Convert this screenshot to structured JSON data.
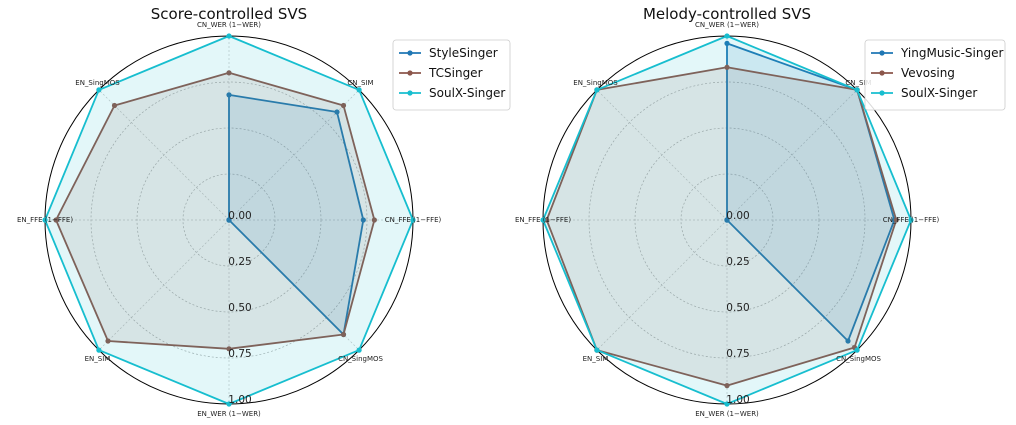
{
  "chart_data": [
    {
      "type": "radar",
      "title": "Score-controlled SVS",
      "axes": [
        "CN_WER (1−WER)",
        "CN_SIM",
        "CN_FFE (1−FFE)",
        "CN_SingMOS",
        "EN_WER (1−WER)",
        "EN_SIM",
        "EN_FFE (1−FFE)",
        "EN_SingMOS"
      ],
      "rticks": [
        "0.00",
        "0.25",
        "0.50",
        "0.75",
        "1.00"
      ],
      "rlim": [
        0,
        1
      ],
      "grid": true,
      "legend_position": "top-right",
      "series": [
        {
          "name": "StyleSinger",
          "color": "#1f77b4",
          "values": [
            0.68,
            0.83,
            0.73,
            0.88,
            0.0,
            0.0,
            0.0,
            0.0
          ]
        },
        {
          "name": "TCSinger",
          "color": "#8c564b",
          "values": [
            0.8,
            0.88,
            0.79,
            0.88,
            0.7,
            0.93,
            0.94,
            0.88
          ]
        },
        {
          "name": "SoulX-Singer",
          "color": "#17becf",
          "values": [
            1.0,
            1.0,
            1.0,
            1.0,
            1.0,
            1.0,
            1.0,
            1.0
          ]
        }
      ]
    },
    {
      "type": "radar",
      "title": "Melody-controlled SVS",
      "axes": [
        "CN_WER (1−WER)",
        "CN_SIM",
        "CN_FFE (1−FFE)",
        "CN_SingMOS",
        "EN_WER (1−WER)",
        "EN_SIM",
        "EN_FFE (1−FFE)",
        "EN_SingMOS"
      ],
      "rticks": [
        "0.00",
        "0.25",
        "0.50",
        "0.75",
        "1.00"
      ],
      "rlim": [
        0,
        1
      ],
      "grid": true,
      "legend_position": "top-right",
      "series": [
        {
          "name": "YingMusic-Singer",
          "color": "#1f77b4",
          "values": [
            0.96,
            1.0,
            0.91,
            0.93,
            0.0,
            0.0,
            0.0,
            0.0
          ]
        },
        {
          "name": "Vevosing",
          "color": "#8c564b",
          "values": [
            0.83,
            1.0,
            0.92,
            0.98,
            0.9,
            1.0,
            0.98,
            1.0
          ]
        },
        {
          "name": "SoulX-Singer",
          "color": "#17becf",
          "values": [
            1.0,
            1.0,
            1.0,
            1.0,
            1.0,
            1.0,
            1.0,
            1.0
          ]
        }
      ]
    }
  ]
}
